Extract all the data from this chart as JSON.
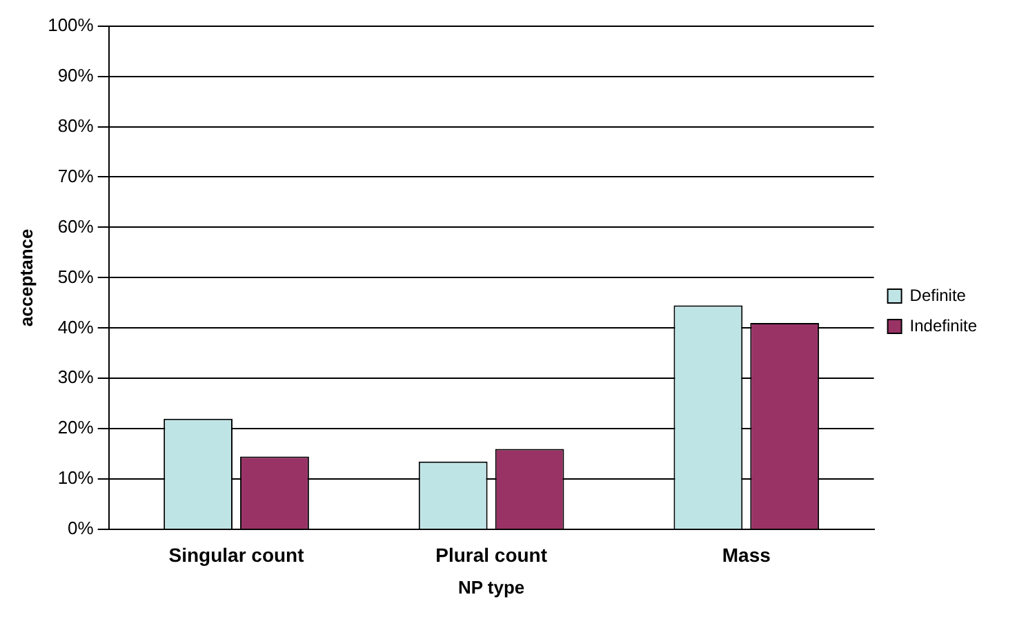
{
  "chart_data": {
    "type": "bar",
    "xlabel": "NP type",
    "ylabel": "acceptance",
    "categories": [
      "Singular count",
      "Plural count",
      "Mass"
    ],
    "series": [
      {
        "name": "Definite",
        "color": "#bfe4e6",
        "values": [
          22,
          13.5,
          44.5
        ]
      },
      {
        "name": "Indefinite",
        "color": "#993366",
        "values": [
          14.5,
          16,
          41
        ]
      }
    ],
    "ylim": [
      0,
      100
    ],
    "yticks": [
      {
        "value": 0,
        "label": "0%"
      },
      {
        "value": 10,
        "label": "10%"
      },
      {
        "value": 20,
        "label": "20%"
      },
      {
        "value": 30,
        "label": "30%"
      },
      {
        "value": 40,
        "label": "40%"
      },
      {
        "value": 50,
        "label": "50%"
      },
      {
        "value": 60,
        "label": "60%"
      },
      {
        "value": 70,
        "label": "70%"
      },
      {
        "value": 80,
        "label": "80%"
      },
      {
        "value": 90,
        "label": "90%"
      },
      {
        "value": 100,
        "label": "100%"
      }
    ],
    "grid": "y",
    "legend": "right"
  }
}
